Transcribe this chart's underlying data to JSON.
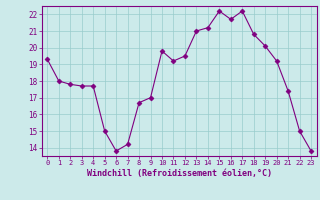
{
  "x": [
    0,
    1,
    2,
    3,
    4,
    5,
    6,
    7,
    8,
    9,
    10,
    11,
    12,
    13,
    14,
    15,
    16,
    17,
    18,
    19,
    20,
    21,
    22,
    23
  ],
  "y": [
    19.3,
    18.0,
    17.8,
    17.7,
    17.7,
    15.0,
    13.8,
    14.2,
    16.7,
    17.0,
    19.8,
    19.2,
    19.5,
    21.0,
    21.2,
    22.2,
    21.7,
    22.2,
    20.8,
    20.1,
    19.2,
    17.4,
    15.0,
    13.8
  ],
  "line_color": "#800080",
  "marker": "D",
  "marker_size": 2.5,
  "bg_color": "#cceaea",
  "grid_color": "#99cccc",
  "xlabel": "Windchill (Refroidissement éolien,°C)",
  "xlabel_color": "#800080",
  "tick_color": "#800080",
  "ylim": [
    13.5,
    22.5
  ],
  "yticks": [
    14,
    15,
    16,
    17,
    18,
    19,
    20,
    21,
    22
  ],
  "xticks": [
    0,
    1,
    2,
    3,
    4,
    5,
    6,
    7,
    8,
    9,
    10,
    11,
    12,
    13,
    14,
    15,
    16,
    17,
    18,
    19,
    20,
    21,
    22,
    23
  ]
}
